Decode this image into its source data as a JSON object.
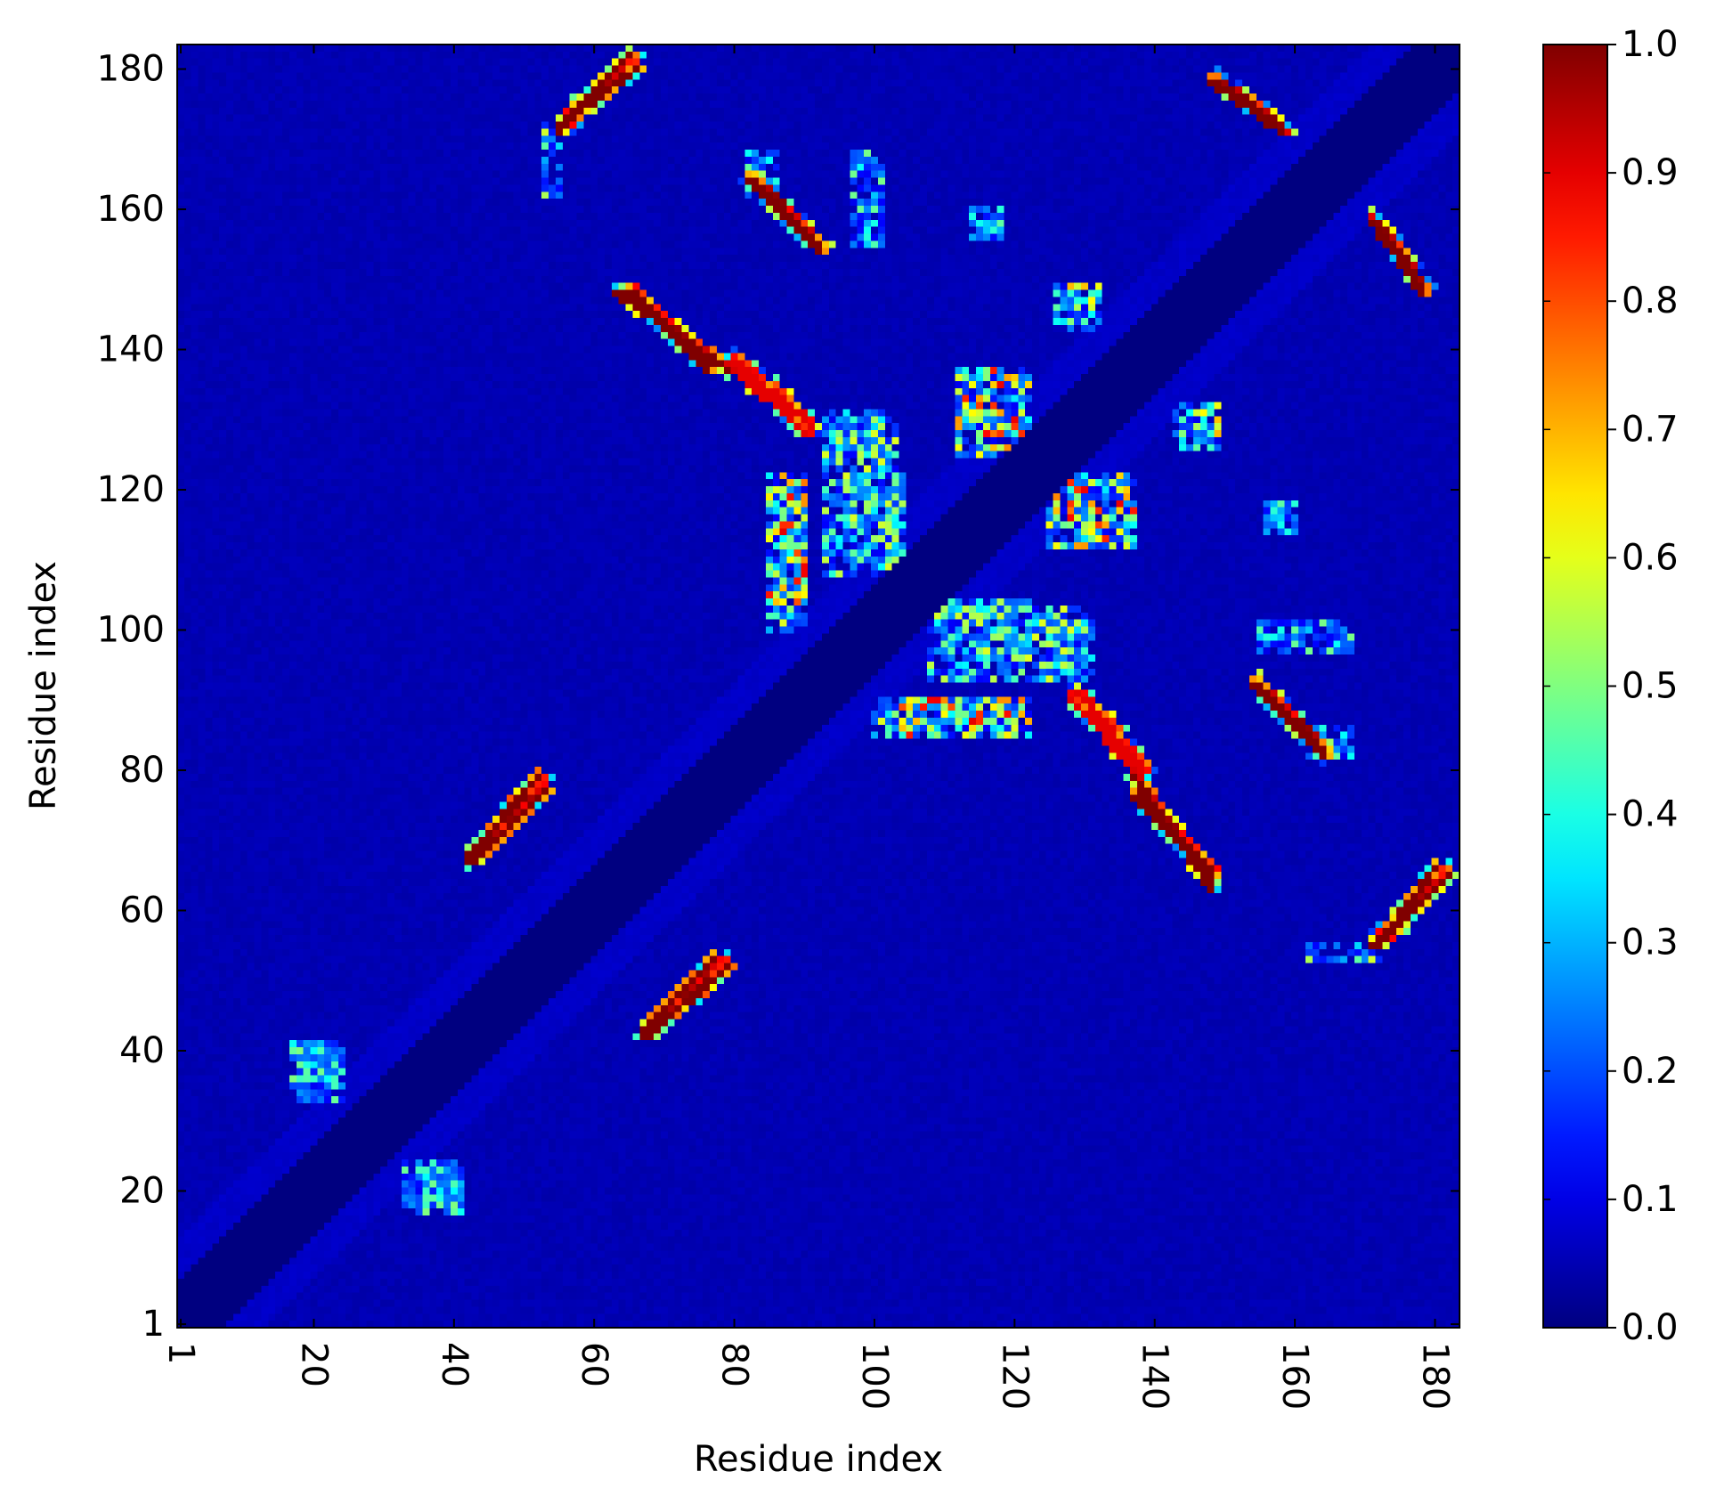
{
  "chart_data": {
    "type": "heatmap",
    "title": "",
    "xlabel": "Residue index",
    "ylabel": "Residue index",
    "xlim": [
      1,
      183
    ],
    "ylim": [
      1,
      183
    ],
    "x_ticks": [
      1,
      20,
      40,
      60,
      80,
      100,
      120,
      140,
      160,
      180
    ],
    "y_ticks": [
      1,
      20,
      40,
      60,
      80,
      100,
      120,
      140,
      160,
      180
    ],
    "x_tick_labels": [
      "1",
      "20",
      "40",
      "60",
      "80",
      "100",
      "120",
      "140",
      "160",
      "180"
    ],
    "y_tick_labels": [
      "1",
      "20",
      "40",
      "60",
      "80",
      "100",
      "120",
      "140",
      "160",
      "180"
    ],
    "x_tick_rotation": "vertical",
    "colormap": "jet",
    "color_range": [
      0.0,
      1.0
    ],
    "colorbar_ticks": [
      0.0,
      0.1,
      0.2,
      0.3,
      0.4,
      0.5,
      0.6,
      0.7,
      0.8,
      0.9,
      1.0
    ],
    "colorbar_tick_labels": [
      "0.0",
      "0.1",
      "0.2",
      "0.3",
      "0.4",
      "0.5",
      "0.6",
      "0.7",
      "0.8",
      "0.9",
      "1.0"
    ],
    "colorbar_position": "right",
    "grid": false,
    "masked_diagonal_band": {
      "half_width": 6,
      "value": 0.0
    },
    "near_diagonal_band": {
      "half_width": 12,
      "value": 0.07
    },
    "background_value": 0.05,
    "contact_segments": [
      {
        "x": [
          42,
          52
        ],
        "y": [
          67,
          79
        ],
        "peak": 1.0
      },
      {
        "x": [
          67,
          77
        ],
        "y": [
          43,
          53
        ],
        "peak": 1.0
      },
      {
        "x": [
          55,
          65
        ],
        "y": [
          171,
          182
        ],
        "peak": 1.0
      },
      {
        "x": [
          152,
          158
        ],
        "y": [
          176,
          171
        ],
        "peak": 1.0
      },
      {
        "x": [
          63,
          79
        ],
        "y": [
          148,
          137
        ],
        "peak": 1.0
      },
      {
        "x": [
          79,
          90
        ],
        "y": [
          138,
          128
        ],
        "peak": 0.9
      },
      {
        "x": [
          84,
          92
        ],
        "y": [
          162,
          154
        ],
        "peak": 1.0
      },
      {
        "x": [
          137,
          148
        ],
        "y": [
          76,
          65
        ],
        "peak": 1.0
      },
      {
        "x": [
          129,
          138
        ],
        "y": [
          91,
          80
        ],
        "peak": 0.9
      },
      {
        "x": [
          154,
          164
        ],
        "y": [
          92,
          82
        ],
        "peak": 1.0
      },
      {
        "x": [
          171,
          178
        ],
        "y": [
          158,
          148
        ],
        "peak": 1.0
      },
      {
        "x": [
          173,
          180
        ],
        "y": [
          56,
          66
        ],
        "peak": 1.0
      }
    ],
    "contact_clusters": [
      {
        "x": [
          85,
          90
        ],
        "y": [
          100,
          122
        ],
        "peak": 0.9
      },
      {
        "x": [
          93,
          103
        ],
        "y": [
          108,
          130
        ],
        "peak": 0.6
      },
      {
        "x": [
          112,
          121
        ],
        "y": [
          125,
          137
        ],
        "peak": 0.9
      },
      {
        "x": [
          103,
          120
        ],
        "y": [
          85,
          90
        ],
        "peak": 0.7
      },
      {
        "x": [
          110,
          122
        ],
        "y": [
          96,
          104
        ],
        "peak": 0.6
      },
      {
        "x": [
          128,
          136
        ],
        "y": [
          112,
          122
        ],
        "peak": 0.9
      },
      {
        "x": [
          125,
          131
        ],
        "y": [
          94,
          101
        ],
        "peak": 0.6
      },
      {
        "x": [
          126,
          132
        ],
        "y": [
          144,
          149
        ],
        "peak": 0.7
      },
      {
        "x": [
          143,
          147
        ],
        "y": [
          127,
          132
        ],
        "peak": 0.7
      },
      {
        "x": [
          17,
          23
        ],
        "y": [
          35,
          41
        ],
        "peak": 0.5
      },
      {
        "x": [
          33,
          40
        ],
        "y": [
          18,
          24
        ],
        "peak": 0.5
      },
      {
        "x": [
          162,
          168
        ],
        "y": [
          82,
          86
        ],
        "peak": 0.6
      },
      {
        "x": [
          162,
          172
        ],
        "y": [
          53,
          55
        ],
        "peak": 0.6
      },
      {
        "x": [
          97,
          101
        ],
        "y": [
          155,
          168
        ],
        "peak": 0.5
      },
      {
        "x": [
          114,
          118
        ],
        "y": [
          156,
          160
        ],
        "peak": 0.5
      }
    ]
  }
}
